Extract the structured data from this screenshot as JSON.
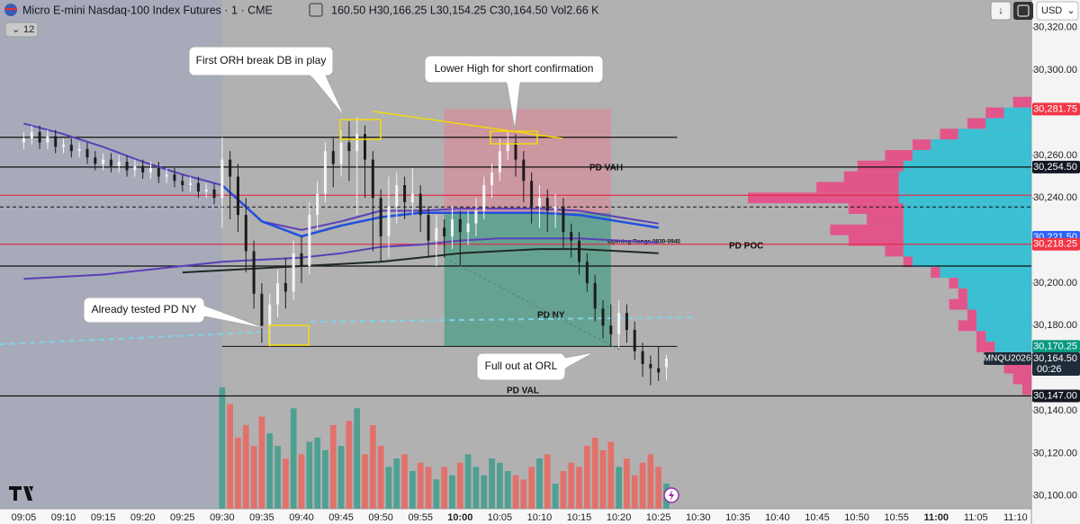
{
  "header": {
    "symbol": "Micro E-mini Nasdaq-100 Index Futures · 1 · CME",
    "ohlc": "160.50 H30,166.25 L30,154.25 C30,164.50 Vol2.66 K",
    "indicator_count": "12",
    "currency": "USD"
  },
  "chart_data": {
    "type": "candlestick",
    "xlim": [
      "09:02",
      "11:12"
    ],
    "ylim": [
      30094,
      30333
    ],
    "xticks": [
      "09:05",
      "09:10",
      "09:15",
      "09:20",
      "09:25",
      "09:30",
      "09:35",
      "09:40",
      "09:45",
      "09:50",
      "09:55",
      "10:00",
      "10:05",
      "10:10",
      "10:15",
      "10:20",
      "10:25",
      "10:30",
      "10:35",
      "10:40",
      "10:45",
      "10:50",
      "10:55",
      "11:00",
      "11:05",
      "11:10"
    ],
    "yticks": [
      {
        "value": 30320,
        "label": "30,320.00"
      },
      {
        "value": 30300,
        "label": "30,300.00"
      },
      {
        "value": 30260,
        "label": "30,260.00"
      },
      {
        "value": 30240,
        "label": "30,240.00"
      },
      {
        "value": 30200,
        "label": "30,200.00"
      },
      {
        "value": 30180,
        "label": "30,180.00"
      },
      {
        "value": 30140,
        "label": "30,140.00"
      },
      {
        "value": 30120,
        "label": "30,120.00"
      },
      {
        "value": 30100,
        "label": "30,100.00"
      }
    ],
    "grid": false,
    "up_color": "#f4f4f4",
    "down_color": "#1c1c1c",
    "volume_up_color": "#4f9f92",
    "volume_down_color": "#e2716b",
    "x": [
      "09:05",
      "09:06",
      "09:07",
      "09:08",
      "09:09",
      "09:10",
      "09:11",
      "09:12",
      "09:13",
      "09:14",
      "09:15",
      "09:16",
      "09:17",
      "09:18",
      "09:19",
      "09:20",
      "09:21",
      "09:22",
      "09:23",
      "09:24",
      "09:25",
      "09:26",
      "09:27",
      "09:28",
      "09:29",
      "09:30",
      "09:31",
      "09:32",
      "09:33",
      "09:34",
      "09:35",
      "09:36",
      "09:37",
      "09:38",
      "09:39",
      "09:40",
      "09:41",
      "09:42",
      "09:43",
      "09:44",
      "09:45",
      "09:46",
      "09:47",
      "09:48",
      "09:49",
      "09:50",
      "09:51",
      "09:52",
      "09:53",
      "09:54",
      "09:55",
      "09:56",
      "09:57",
      "09:58",
      "09:59",
      "10:00",
      "10:01",
      "10:02",
      "10:03",
      "10:04",
      "10:05",
      "10:06",
      "10:07",
      "10:08",
      "10:09",
      "10:10",
      "10:11",
      "10:12",
      "10:13",
      "10:14",
      "10:15",
      "10:16",
      "10:17",
      "10:18",
      "10:19",
      "10:20",
      "10:21",
      "10:22",
      "10:23",
      "10:24",
      "10:25",
      "10:26"
    ],
    "open": [
      30266,
      30268,
      30271,
      30266,
      30269,
      30264,
      30265,
      30262,
      30263,
      30259,
      30256,
      30258,
      30255,
      30257,
      30253,
      30255,
      30252,
      30254,
      30250,
      30251,
      30248,
      30246,
      30247,
      30243,
      30244,
      30240,
      30258,
      30250,
      30232,
      30215,
      30195,
      30180,
      30190,
      30200,
      30196,
      30214,
      30208,
      30232,
      30242,
      30262,
      30256,
      30266,
      30262,
      30270,
      30258,
      30240,
      30222,
      30236,
      30246,
      30238,
      30242,
      30232,
      30220,
      30226,
      30222,
      30230,
      30224,
      30228,
      30234,
      30246,
      30252,
      30262,
      30266,
      30258,
      30248,
      30236,
      30240,
      30234,
      30236,
      30224,
      30220,
      30210,
      30200,
      30188,
      30180,
      30176,
      30186,
      30178,
      30168,
      30162,
      30160,
      30160.5
    ],
    "high": [
      30271,
      30274,
      30274,
      30272,
      30272,
      30268,
      30268,
      30266,
      30266,
      30262,
      30261,
      30261,
      30260,
      30260,
      30258,
      30258,
      30257,
      30257,
      30254,
      30254,
      30251,
      30250,
      30250,
      30247,
      30247,
      30268.5,
      30262,
      30256,
      30240,
      30220,
      30200,
      30195,
      30206,
      30212,
      30220,
      30222,
      30238,
      30248,
      30266,
      30268,
      30272,
      30276,
      30278,
      30274,
      30262,
      30244,
      30250,
      30252,
      30250,
      30254,
      30246,
      30236,
      30232,
      30230,
      30236,
      30234,
      30234,
      30240,
      30250,
      30256,
      30268,
      30272,
      30270,
      30262,
      30252,
      30246,
      30244,
      30242,
      30240,
      30228,
      30224,
      30214,
      30204,
      30192,
      30190,
      30192,
      30190,
      30182,
      30172,
      30166,
      30170,
      30166.25
    ],
    "low": [
      30263,
      30265,
      30263,
      30263,
      30261,
      30261,
      30259,
      30259,
      30256,
      30253,
      30253,
      30252,
      30252,
      30250,
      30250,
      30249,
      30249,
      30247,
      30247,
      30245,
      30243,
      30243,
      30240,
      30240,
      30237,
      30226,
      30230,
      30224,
      30205,
      30188,
      30172,
      30170.25,
      30184,
      30188,
      30192,
      30200,
      30204,
      30225,
      30238,
      30245,
      30250,
      30248,
      30232,
      30240,
      30215,
      30210,
      30212,
      30228,
      30230,
      30232,
      30224,
      30212,
      30208,
      30212,
      30216,
      30208,
      30218,
      30222,
      30230,
      30240,
      30248,
      30258,
      30250,
      30238,
      30228,
      30226,
      30224,
      30226,
      30216,
      30212,
      30204,
      30196,
      30182,
      30174,
      30170,
      30170,
      30172,
      30164,
      30156,
      30152,
      30154,
      30154.25
    ],
    "close": [
      30268,
      30271,
      30266,
      30269,
      30264,
      30265,
      30262,
      30263,
      30259,
      30256,
      30258,
      30255,
      30257,
      30253,
      30255,
      30252,
      30254,
      30250,
      30251,
      30248,
      30246,
      30247,
      30243,
      30244,
      30240,
      30258,
      30250,
      30232,
      30215,
      30195,
      30180,
      30190,
      30200,
      30196,
      30214,
      30208,
      30232,
      30242,
      30262,
      30256,
      30266,
      30262,
      30270,
      30258,
      30240,
      30222,
      30236,
      30246,
      30238,
      30242,
      30232,
      30220,
      30226,
      30222,
      30230,
      30224,
      30228,
      30234,
      30246,
      30252,
      30262,
      30266,
      30258,
      30248,
      30236,
      30240,
      30234,
      30236,
      30224,
      30220,
      30210,
      30200,
      30188,
      30180,
      30176,
      30186,
      30178,
      30168,
      30162,
      30160,
      30158,
      30164.5
    ],
    "volume": [
      null,
      null,
      null,
      null,
      null,
      null,
      null,
      null,
      null,
      null,
      null,
      null,
      null,
      null,
      null,
      null,
      null,
      null,
      null,
      null,
      null,
      null,
      null,
      null,
      null,
      2900,
      2500,
      1700,
      2000,
      1500,
      2200,
      1800,
      1500,
      1200,
      2400,
      1300,
      1600,
      1700,
      1400,
      2000,
      1500,
      2100,
      2400,
      1300,
      2000,
      1500,
      1000,
      1200,
      1300,
      900,
      1100,
      1000,
      700,
      1000,
      800,
      1100,
      1300,
      1000,
      800,
      1200,
      1100,
      900,
      800,
      700,
      1000,
      1200,
      1300,
      600,
      900,
      1100,
      1000,
      1500,
      1700,
      1400,
      1600,
      1000,
      1200,
      800,
      1100,
      1300,
      1000,
      600
    ],
    "indicators": {
      "x": [
        "09:05",
        "09:10",
        "09:15",
        "09:20",
        "09:25",
        "09:30",
        "09:35",
        "09:40",
        "09:45",
        "09:50",
        "09:55",
        "10:00",
        "10:05",
        "10:10",
        "10:15",
        "10:20",
        "10:25"
      ],
      "series": [
        {
          "color": "#5b3fb8",
          "width": 2,
          "values": [
            30275,
            30270,
            30264,
            30257,
            30251,
            30246,
            30229,
            30225,
            30229,
            30234,
            30234,
            30235,
            30235,
            30235,
            30234,
            30231,
            30228
          ]
        },
        {
          "color": "#1f4fe0",
          "width": 2.5,
          "values": [
            null,
            null,
            null,
            null,
            null,
            30246,
            30229,
            30222,
            30227,
            30231,
            30233,
            30233,
            30233,
            30233,
            30232,
            30229,
            30226
          ]
        },
        {
          "color": "#5b3fb8",
          "width": 2,
          "values": [
            30202,
            30203,
            30204,
            30206,
            30208,
            30210,
            30211,
            30212,
            30214,
            30217,
            30218,
            30220,
            30221,
            30221,
            30221,
            30220,
            30219
          ]
        },
        {
          "color": "#1e2a22",
          "width": 2,
          "values": [
            null,
            null,
            null,
            null,
            30205,
            30206,
            30207,
            30208,
            30209,
            30210,
            30212,
            30214,
            30215,
            30216,
            30216,
            30215,
            30214
          ]
        }
      ]
    },
    "levels": [
      {
        "value": 30268.5,
        "color": "#111111",
        "style": "solid",
        "end": "10:26"
      },
      {
        "value": 30254.5,
        "color": "#111111",
        "style": "solid"
      },
      {
        "value": 30241.25,
        "color": "#e0304a",
        "style": "solid"
      },
      {
        "value": 30235.75,
        "color": "#222222",
        "style": "dashed"
      },
      {
        "value": 30218.25,
        "color": "#e0304a",
        "style": "solid"
      },
      {
        "value": 30208,
        "color": "#111111",
        "style": "solid"
      },
      {
        "value": 30170.25,
        "color": "#222222",
        "style": "solid",
        "start": "09:30",
        "end": "10:26"
      },
      {
        "value": 30147,
        "color": "#111111",
        "style": "solid"
      }
    ],
    "trade": {
      "start": "09:58",
      "end": "10:19",
      "stop": 30281.75,
      "entry": 30233,
      "target": 30170.25,
      "stop_color": "rgba(236,120,140,0.45)",
      "target_color": "rgba(40,150,120,0.55)"
    },
    "profile": {
      "prices": [
        30150,
        30155,
        30160,
        30165,
        30170,
        30175,
        30180,
        30185,
        30190,
        30195,
        30200,
        30205,
        30210,
        30215,
        30220,
        30225,
        30230,
        30235,
        30240,
        30245,
        30250,
        30255,
        30260,
        30265,
        30270,
        30275,
        30280,
        30285
      ],
      "up": [
        0,
        0,
        0,
        0,
        40,
        50,
        60,
        60,
        70,
        70,
        80,
        100,
        130,
        140,
        140,
        140,
        140,
        140,
        145,
        145,
        145,
        140,
        130,
        110,
        80,
        50,
        30,
        0
      ],
      "down": [
        10,
        20,
        30,
        40,
        20,
        10,
        20,
        10,
        20,
        10,
        10,
        10,
        10,
        20,
        60,
        80,
        40,
        60,
        165,
        90,
        60,
        50,
        30,
        20,
        20,
        20,
        20,
        20
      ],
      "up_color": "#3bbfd3",
      "down_color": "#e2558a"
    },
    "price_tags": [
      {
        "value": 30281.75,
        "label": "30,281.75",
        "color": "#f23645"
      },
      {
        "value": 30254.5,
        "label": "30,254.50",
        "color": "#131722"
      },
      {
        "value": 30221.5,
        "label": "30,221.50",
        "color": "#2962ff"
      },
      {
        "value": 30218.25,
        "label": "30,218.25",
        "color": "#f23645"
      },
      {
        "value": 30170.25,
        "label": "30,170.25",
        "color": "#089981"
      },
      {
        "value": 30147,
        "label": "30,147.00",
        "color": "#131722"
      }
    ],
    "last_price": {
      "value": 30164.5,
      "label": "30,164.50",
      "symbol": "MNQU2026",
      "countdown": "00:26"
    },
    "level_labels": [
      "PD VAH",
      "PD POC",
      "PD NY",
      "PD VAL",
      "Opening Range 0930-0945"
    ],
    "annotations": [
      "First ORH break DB in play",
      "Lower High for short confirmation",
      "Already tested PD NY",
      "Full out at ORL"
    ]
  }
}
